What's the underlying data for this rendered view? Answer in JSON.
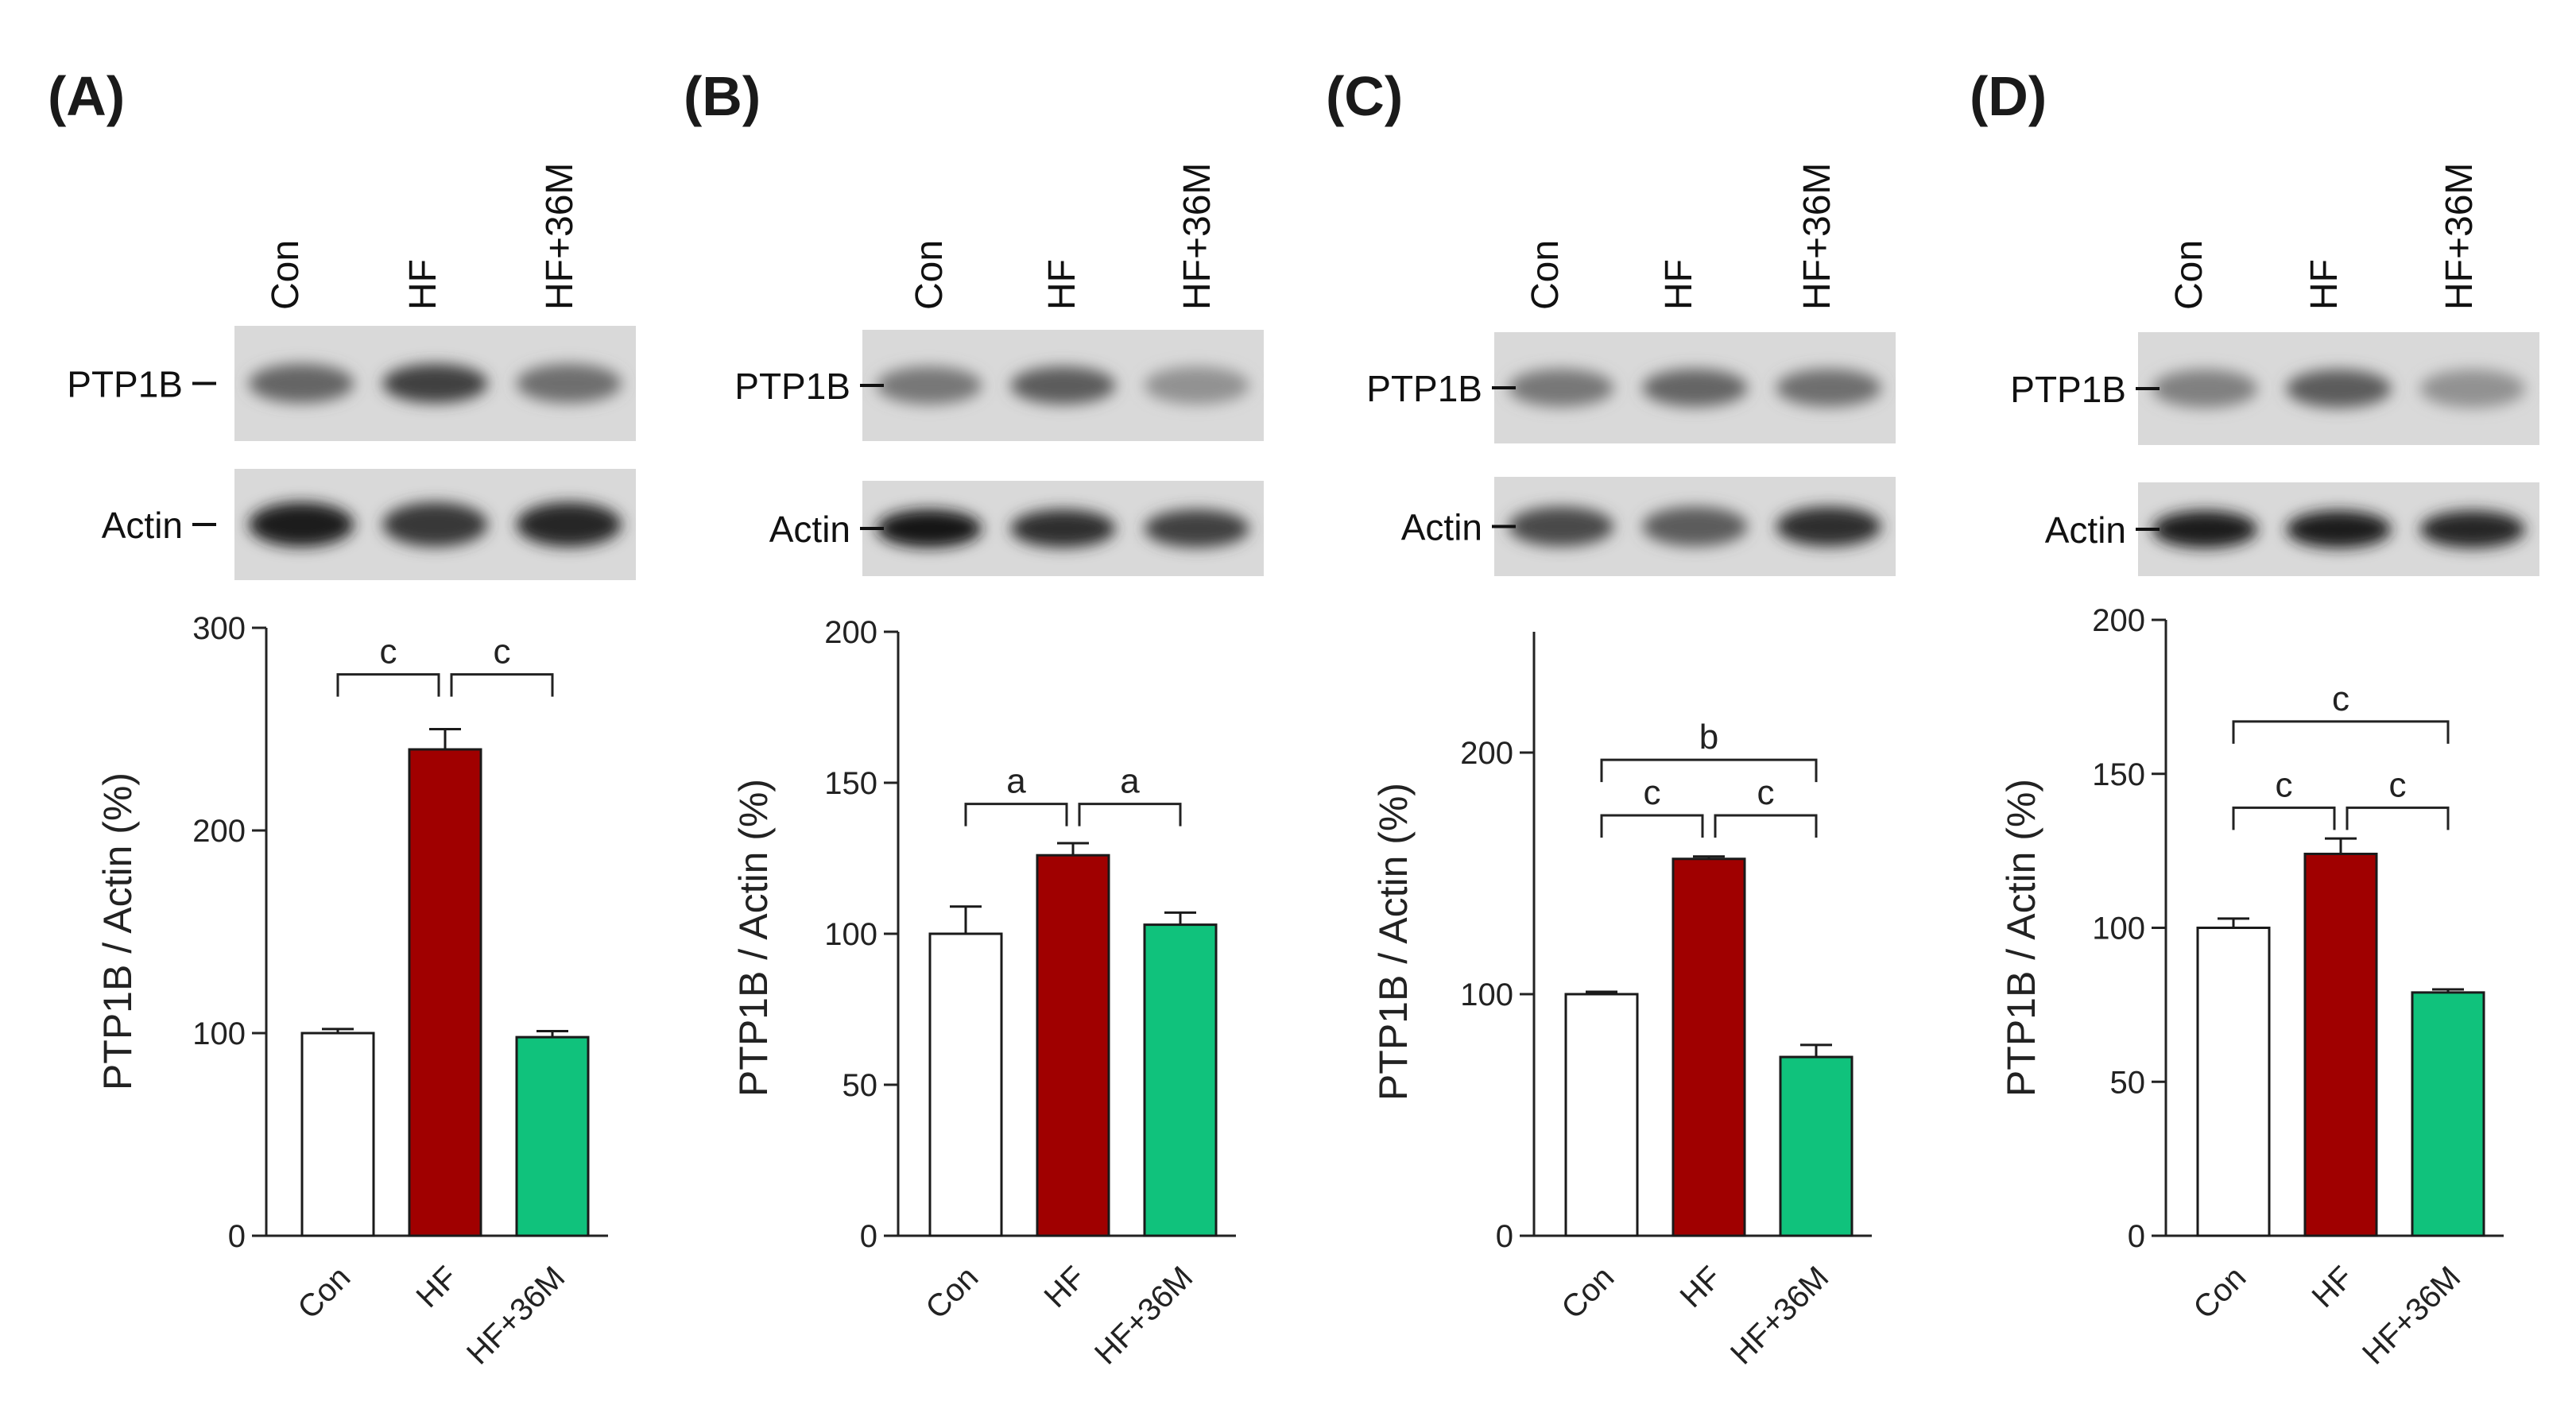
{
  "colors": {
    "con": "#ffffff",
    "hf": "#a00000",
    "hf36m": "#10c27c",
    "stroke": "#1a1a1a"
  },
  "chart_data": [
    {
      "panel": "(A)",
      "type": "bar",
      "lanes": [
        "Con",
        "HF",
        "HF+36M"
      ],
      "blot_labels": [
        "PTP1B",
        "Actin"
      ],
      "categories": [
        "Con",
        "HF",
        "HF+36M"
      ],
      "values": [
        100,
        240,
        98
      ],
      "errors": [
        2,
        10,
        3
      ],
      "ylabel": "PTP1B / Actin (%)",
      "ylim": [
        0,
        300
      ],
      "yticks": [
        0,
        100,
        200,
        300
      ],
      "brackets": [
        {
          "from": 0,
          "to": 1,
          "label": "c",
          "y": 277
        },
        {
          "from": 1,
          "to": 2,
          "label": "c",
          "y": 277
        }
      ]
    },
    {
      "panel": "(B)",
      "type": "bar",
      "lanes": [
        "Con",
        "HF",
        "HF+36M"
      ],
      "blot_labels": [
        "PTP1B",
        "Actin"
      ],
      "categories": [
        "Con",
        "HF",
        "HF+36M"
      ],
      "values": [
        100,
        126,
        103
      ],
      "errors": [
        9,
        4,
        4
      ],
      "ylabel": "PTP1B / Actin (%)",
      "ylim": [
        0,
        200
      ],
      "yticks": [
        0,
        50,
        100,
        150,
        200
      ],
      "brackets": [
        {
          "from": 0,
          "to": 1,
          "label": "a",
          "y": 143
        },
        {
          "from": 1,
          "to": 2,
          "label": "a",
          "y": 143
        }
      ]
    },
    {
      "panel": "(C)",
      "type": "bar",
      "lanes": [
        "Con",
        "HF",
        "HF+36M"
      ],
      "blot_labels": [
        "PTP1B",
        "Actin"
      ],
      "categories": [
        "Con",
        "HF",
        "HF+36M"
      ],
      "values": [
        100,
        156,
        74
      ],
      "errors": [
        1,
        1,
        5
      ],
      "ylabel": "PTP1B / Actin (%)",
      "ylim": [
        0,
        250
      ],
      "yticks": [
        0,
        100,
        200
      ],
      "brackets": [
        {
          "from": 0,
          "to": 2,
          "label": "b",
          "y": 197
        },
        {
          "from": 0,
          "to": 1,
          "label": "c",
          "y": 174
        },
        {
          "from": 1,
          "to": 2,
          "label": "c",
          "y": 174
        }
      ]
    },
    {
      "panel": "(D)",
      "type": "bar",
      "lanes": [
        "Con",
        "HF",
        "HF+36M"
      ],
      "blot_labels": [
        "PTP1B",
        "Actin"
      ],
      "categories": [
        "Con",
        "HF",
        "HF+36M"
      ],
      "values": [
        100,
        124,
        79
      ],
      "errors": [
        3,
        5,
        1
      ],
      "ylabel": "PTP1B / Actin (%)",
      "ylim": [
        0,
        200
      ],
      "yticks": [
        0,
        50,
        100,
        150,
        200
      ],
      "brackets": [
        {
          "from": 0,
          "to": 2,
          "label": "c",
          "y": 167
        },
        {
          "from": 0,
          "to": 1,
          "label": "c",
          "y": 139
        },
        {
          "from": 1,
          "to": 2,
          "label": "c",
          "y": 139
        }
      ]
    }
  ]
}
